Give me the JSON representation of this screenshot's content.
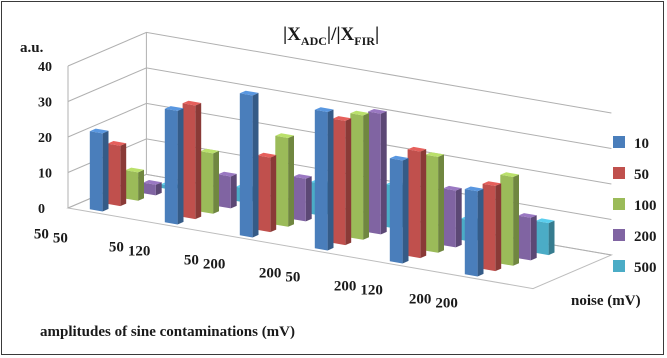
{
  "chart_data": {
    "type": "bar",
    "subtype": "3d-column",
    "title": {
      "main": "|X",
      "sub1": "ADC",
      "mid": "|/|X",
      "sub2": "FIR",
      "end": "|"
    },
    "ylabel": "a.u.",
    "xlabel": "amplitudes of sine contaminations (mV)",
    "depth_label": "noise (mV)",
    "ylim": [
      0,
      40
    ],
    "yticks": [
      "0",
      "10",
      "20",
      "30",
      "40"
    ],
    "categories": [
      {
        "a": "50",
        "b": "50"
      },
      {
        "a": "50",
        "b": "120"
      },
      {
        "a": "50",
        "b": "200"
      },
      {
        "a": "200",
        "b": "50"
      },
      {
        "a": "200",
        "b": "120"
      },
      {
        "a": "200",
        "b": "200"
      }
    ],
    "series": [
      {
        "name": "10",
        "color": "#4a7ebb",
        "values": [
          22,
          32,
          40,
          39,
          29,
          24
        ]
      },
      {
        "name": "50",
        "color": "#c0504d",
        "values": [
          17,
          32,
          21,
          35,
          30,
          24
        ]
      },
      {
        "name": "100",
        "color": "#9bbb59",
        "values": [
          8,
          17,
          25,
          35,
          27,
          25
        ]
      },
      {
        "name": "200",
        "color": "#8064a2",
        "values": [
          3,
          9,
          12,
          34,
          16,
          12
        ]
      },
      {
        "name": "500",
        "color": "#4bacc6",
        "values": [
          1,
          4,
          9,
          12,
          6,
          9
        ]
      }
    ],
    "legend_position": "right",
    "grid": true
  }
}
